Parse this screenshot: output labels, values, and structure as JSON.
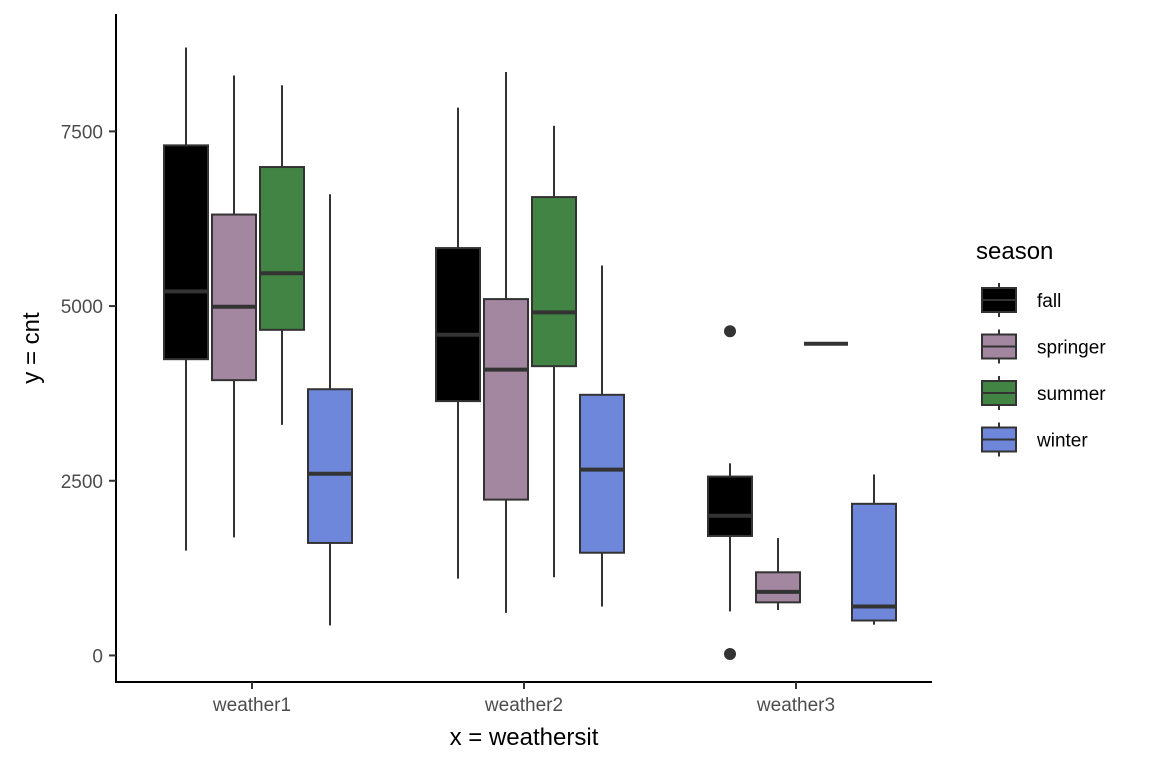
{
  "chart_data": {
    "type": "boxplot",
    "xlabel": "x = weathersit",
    "ylabel": "y = cnt",
    "categories": [
      "weather1",
      "weather2",
      "weather3"
    ],
    "ylim": [
      -380,
      9180
    ],
    "yticks": [
      0,
      2500,
      5000,
      7500
    ],
    "ytick_labels": [
      "0",
      "2500",
      "5000",
      "7500"
    ],
    "grid": false,
    "legend": {
      "title": "season",
      "placement": "right"
    },
    "series": [
      {
        "name": "fall",
        "color": "#000000",
        "boxes": [
          {
            "category": "weather1",
            "min": 1500,
            "q1": 4240,
            "median": 5210,
            "q3": 7300,
            "max": 8700,
            "outliers": []
          },
          {
            "category": "weather2",
            "min": 1100,
            "q1": 3640,
            "median": 4590,
            "q3": 5830,
            "max": 7840,
            "outliers": []
          },
          {
            "category": "weather3",
            "min": 630,
            "q1": 1710,
            "median": 2000,
            "q3": 2560,
            "max": 2750,
            "outliers": [
              4640,
              20
            ]
          }
        ]
      },
      {
        "name": "springer",
        "color": "#a3869f",
        "boxes": [
          {
            "category": "weather1",
            "min": 1690,
            "q1": 3940,
            "median": 4990,
            "q3": 6310,
            "max": 8300,
            "outliers": []
          },
          {
            "category": "weather2",
            "min": 610,
            "q1": 2230,
            "median": 4090,
            "q3": 5100,
            "max": 8350,
            "outliers": []
          },
          {
            "category": "weather3",
            "min": 650,
            "q1": 760,
            "median": 910,
            "q3": 1190,
            "max": 1680,
            "outliers": []
          }
        ]
      },
      {
        "name": "summer",
        "color": "#418443",
        "boxes": [
          {
            "category": "weather1",
            "min": 3300,
            "q1": 4660,
            "median": 5470,
            "q3": 6990,
            "max": 8160,
            "outliers": []
          },
          {
            "category": "weather2",
            "min": 1120,
            "q1": 4140,
            "median": 4910,
            "q3": 6560,
            "max": 7580,
            "outliers": []
          },
          {
            "category": "weather3",
            "min": 4460,
            "q1": 4460,
            "median": 4460,
            "q3": 4460,
            "max": 4460,
            "outliers": []
          }
        ]
      },
      {
        "name": "winter",
        "color": "#6e87db",
        "boxes": [
          {
            "category": "weather1",
            "min": 430,
            "q1": 1610,
            "median": 2600,
            "q3": 3810,
            "max": 6600,
            "outliers": []
          },
          {
            "category": "weather2",
            "min": 700,
            "q1": 1470,
            "median": 2660,
            "q3": 3730,
            "max": 5580,
            "outliers": []
          },
          {
            "category": "weather3",
            "min": 440,
            "q1": 500,
            "median": 700,
            "q3": 2170,
            "max": 2590,
            "outliers": []
          }
        ]
      }
    ]
  }
}
